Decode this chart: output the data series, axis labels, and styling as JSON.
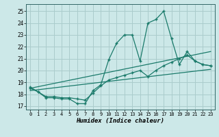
{
  "xlabel": "Humidex (Indice chaleur)",
  "background_color": "#cce8e8",
  "grid_color": "#aacccc",
  "line_color": "#1a7a6a",
  "xlim": [
    -0.5,
    23.5
  ],
  "ylim": [
    16.7,
    25.6
  ],
  "yticks": [
    17,
    18,
    19,
    20,
    21,
    22,
    23,
    24,
    25
  ],
  "xticks": [
    0,
    1,
    2,
    3,
    4,
    5,
    6,
    7,
    8,
    9,
    10,
    11,
    12,
    13,
    14,
    15,
    16,
    17,
    18,
    19,
    20,
    21,
    22,
    23
  ],
  "line1_x": [
    0,
    1,
    2,
    3,
    4,
    5,
    6,
    7,
    8,
    9,
    10,
    11,
    12,
    13,
    14,
    15,
    16,
    17,
    18,
    19,
    20,
    21,
    22,
    23
  ],
  "line1_y": [
    18.6,
    18.2,
    17.7,
    17.7,
    17.6,
    17.6,
    17.2,
    17.2,
    18.3,
    18.8,
    20.9,
    22.3,
    23.0,
    23.0,
    20.8,
    24.0,
    24.3,
    25.0,
    22.7,
    20.5,
    21.6,
    20.8,
    20.5,
    20.4
  ],
  "line2_x": [
    0,
    1,
    2,
    3,
    4,
    5,
    6,
    7,
    8,
    9,
    10,
    11,
    12,
    13,
    14,
    15,
    16,
    17,
    18,
    19,
    20,
    21,
    22,
    23
  ],
  "line2_y": [
    18.5,
    18.2,
    17.8,
    17.8,
    17.7,
    17.7,
    17.6,
    17.5,
    18.1,
    18.7,
    19.2,
    19.4,
    19.6,
    19.8,
    20.0,
    19.5,
    20.0,
    20.4,
    20.7,
    21.0,
    21.3,
    20.8,
    20.5,
    20.4
  ],
  "line3_x": [
    0,
    23
  ],
  "line3_y": [
    18.5,
    21.6
  ],
  "line4_x": [
    0,
    23
  ],
  "line4_y": [
    18.3,
    20.1
  ]
}
